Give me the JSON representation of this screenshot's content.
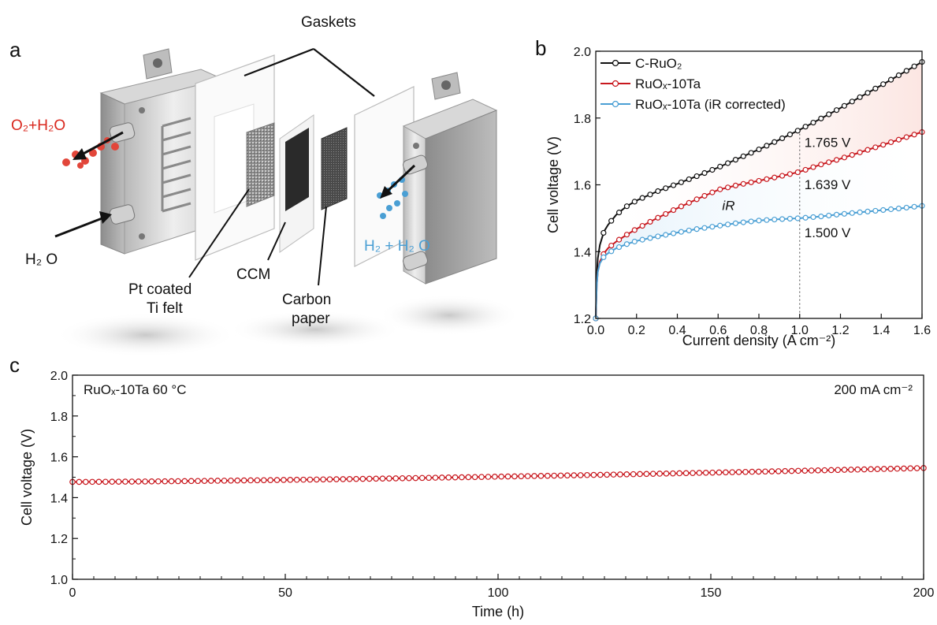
{
  "panel_labels": {
    "a": "a",
    "b": "b",
    "c": "c"
  },
  "schematic": {
    "gaskets": "Gaskets",
    "o2_h2o": "O₂+H₂O",
    "h2o_left": "H₂ O",
    "h2_h2o": "H₂ + H₂ O",
    "pt_coated_line1": "Pt coated",
    "pt_coated_line2": "Ti felt",
    "ccm": "CCM",
    "carbon_line1": "Carbon",
    "carbon_line2": "paper"
  },
  "colors": {
    "black_series": "#111111",
    "red_series": "#c8181e",
    "blue_series": "#4a9fd4",
    "frame_light": "#e6e6e6",
    "frame_dark": "#9a9a9a"
  },
  "chart_data": [
    {
      "type": "line",
      "panel": "b",
      "xlabel": "Current density (A cm⁻²)",
      "ylabel": "Cell voltage (V)",
      "xlim": [
        0,
        1.6
      ],
      "ylim": [
        1.2,
        2.0
      ],
      "x_ticks": [
        "0.0",
        "0.2",
        "0.4",
        "0.6",
        "0.8",
        "1.0",
        "1.2",
        "1.4",
        "1.6"
      ],
      "y_ticks": [
        "1.2",
        "1.4",
        "1.6",
        "1.8",
        "2.0"
      ],
      "legend_position": "top-left",
      "series": [
        {
          "name": "C-RuO₂",
          "color": "#111111",
          "x": [
            0,
            0.005,
            0.01,
            0.02,
            0.04,
            0.06,
            0.1,
            0.15,
            0.2,
            0.3,
            0.4,
            0.5,
            0.6,
            0.7,
            0.8,
            0.9,
            1.0,
            1.1,
            1.2,
            1.3,
            1.4,
            1.5,
            1.6
          ],
          "y": [
            1.2,
            1.33,
            1.38,
            1.42,
            1.46,
            1.48,
            1.51,
            1.535,
            1.553,
            1.58,
            1.603,
            1.627,
            1.652,
            1.679,
            1.706,
            1.735,
            1.765,
            1.797,
            1.83,
            1.864,
            1.898,
            1.933,
            1.968
          ]
        },
        {
          "name": "RuOₓ-10Ta",
          "color": "#c8181e",
          "x": [
            0,
            0.005,
            0.01,
            0.02,
            0.04,
            0.06,
            0.1,
            0.15,
            0.2,
            0.3,
            0.4,
            0.5,
            0.6,
            0.7,
            0.8,
            0.9,
            1.0,
            1.1,
            1.2,
            1.3,
            1.4,
            1.5,
            1.6
          ],
          "y": [
            1.2,
            1.3,
            1.34,
            1.37,
            1.395,
            1.41,
            1.43,
            1.45,
            1.468,
            1.5,
            1.53,
            1.558,
            1.585,
            1.6,
            1.612,
            1.625,
            1.639,
            1.66,
            1.678,
            1.698,
            1.718,
            1.738,
            1.758
          ]
        },
        {
          "name": "RuOₓ-10Ta (iR corrected)",
          "color": "#4a9fd4",
          "x": [
            0,
            0.005,
            0.01,
            0.02,
            0.04,
            0.06,
            0.1,
            0.15,
            0.2,
            0.3,
            0.4,
            0.5,
            0.6,
            0.7,
            0.8,
            0.9,
            1.0,
            1.1,
            1.2,
            1.3,
            1.4,
            1.5,
            1.6
          ],
          "y": [
            1.2,
            1.3,
            1.34,
            1.365,
            1.385,
            1.395,
            1.41,
            1.422,
            1.432,
            1.445,
            1.457,
            1.468,
            1.477,
            1.486,
            1.493,
            1.497,
            1.5,
            1.505,
            1.512,
            1.518,
            1.524,
            1.53,
            1.537
          ]
        }
      ],
      "annotations": {
        "v1": "1.765 V",
        "v2": "1.639 V",
        "v3": "1.500 V",
        "ir": "iR"
      },
      "marker_x": 1.0
    },
    {
      "type": "line",
      "panel": "c",
      "xlabel": "Time (h)",
      "ylabel": "Cell voltage (V)",
      "xlim": [
        0,
        200
      ],
      "ylim": [
        1.0,
        2.0
      ],
      "x_ticks": [
        "0",
        "50",
        "100",
        "150",
        "200"
      ],
      "y_ticks": [
        "1.0",
        "1.2",
        "1.4",
        "1.6",
        "1.8",
        "2.0"
      ],
      "condition_label": "RuOₓ-10Ta  60 °C",
      "current_label": "200 mA cm⁻²",
      "series": [
        {
          "name": "RuOₓ-10Ta",
          "color": "#c8181e",
          "x_start": 0,
          "x_end": 200,
          "y_start": 1.477,
          "y_end": 1.545,
          "points": 130
        }
      ]
    }
  ]
}
